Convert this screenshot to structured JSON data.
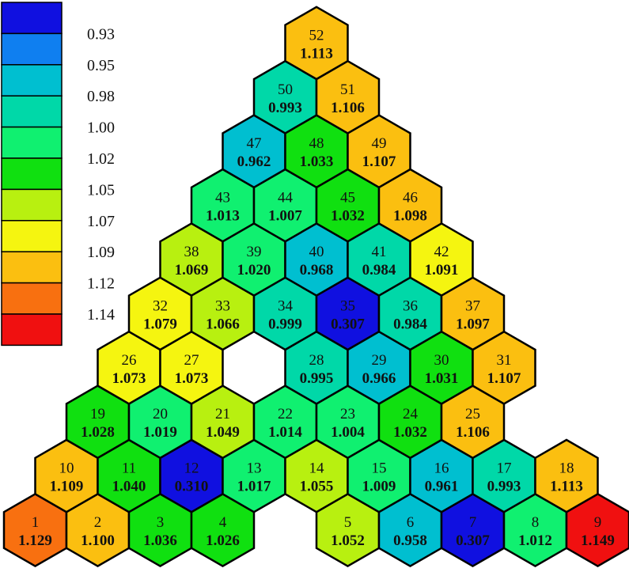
{
  "legend": {
    "labels": [
      "0.93",
      "0.95",
      "0.98",
      "1.00",
      "1.02",
      "1.05",
      "1.07",
      "1.09",
      "1.12",
      "1.14"
    ],
    "colors": [
      "#1010e0",
      "#0f7ff0",
      "#00bfd0",
      "#00d8a8",
      "#10f070",
      "#10e010",
      "#b8f010",
      "#f5f510",
      "#fbbf10",
      "#f87010",
      "#f01010"
    ]
  },
  "assemblies": [
    {
      "id": "1",
      "value": "1.129",
      "row": 0,
      "col": 0,
      "color": "#f87010"
    },
    {
      "id": "2",
      "value": "1.100",
      "row": 0,
      "col": 1,
      "color": "#fbbf10"
    },
    {
      "id": "3",
      "value": "1.036",
      "row": 0,
      "col": 2,
      "color": "#10e010"
    },
    {
      "id": "4",
      "value": "1.026",
      "row": 0,
      "col": 3,
      "color": "#10e010"
    },
    {
      "id": "5",
      "value": "1.052",
      "row": 0,
      "col": 5,
      "color": "#b8f010"
    },
    {
      "id": "6",
      "value": "0.958",
      "row": 0,
      "col": 6,
      "color": "#00bfd0"
    },
    {
      "id": "7",
      "value": "0.307",
      "row": 0,
      "col": 7,
      "color": "#1010e0"
    },
    {
      "id": "8",
      "value": "1.012",
      "row": 0,
      "col": 8,
      "color": "#10f070"
    },
    {
      "id": "9",
      "value": "1.149",
      "row": 0,
      "col": 9,
      "color": "#f01010"
    },
    {
      "id": "10",
      "value": "1.109",
      "row": 1,
      "col": 0,
      "color": "#fbbf10"
    },
    {
      "id": "11",
      "value": "1.040",
      "row": 1,
      "col": 1,
      "color": "#10e010"
    },
    {
      "id": "12",
      "value": "0.310",
      "row": 1,
      "col": 2,
      "color": "#1010e0"
    },
    {
      "id": "13",
      "value": "1.017",
      "row": 1,
      "col": 3,
      "color": "#10f070"
    },
    {
      "id": "14",
      "value": "1.055",
      "row": 1,
      "col": 4,
      "color": "#b8f010"
    },
    {
      "id": "15",
      "value": "1.009",
      "row": 1,
      "col": 5,
      "color": "#10f070"
    },
    {
      "id": "16",
      "value": "0.961",
      "row": 1,
      "col": 6,
      "color": "#00bfd0"
    },
    {
      "id": "17",
      "value": "0.993",
      "row": 1,
      "col": 7,
      "color": "#00d8a8"
    },
    {
      "id": "18",
      "value": "1.113",
      "row": 1,
      "col": 8,
      "color": "#fbbf10"
    },
    {
      "id": "19",
      "value": "1.028",
      "row": 2,
      "col": 0,
      "color": "#10e010"
    },
    {
      "id": "20",
      "value": "1.019",
      "row": 2,
      "col": 1,
      "color": "#10f070"
    },
    {
      "id": "21",
      "value": "1.049",
      "row": 2,
      "col": 2,
      "color": "#b8f010"
    },
    {
      "id": "22",
      "value": "1.014",
      "row": 2,
      "col": 3,
      "color": "#10f070"
    },
    {
      "id": "23",
      "value": "1.004",
      "row": 2,
      "col": 4,
      "color": "#10f070"
    },
    {
      "id": "24",
      "value": "1.032",
      "row": 2,
      "col": 5,
      "color": "#10e010"
    },
    {
      "id": "25",
      "value": "1.106",
      "row": 2,
      "col": 6,
      "color": "#fbbf10"
    },
    {
      "id": "26",
      "value": "1.073",
      "row": 3,
      "col": 0,
      "color": "#f5f510"
    },
    {
      "id": "27",
      "value": "1.073",
      "row": 3,
      "col": 1,
      "color": "#f5f510"
    },
    {
      "id": "28",
      "value": "0.995",
      "row": 3,
      "col": 3,
      "color": "#00d8a8"
    },
    {
      "id": "29",
      "value": "0.966",
      "row": 3,
      "col": 4,
      "color": "#00bfd0"
    },
    {
      "id": "30",
      "value": "1.031",
      "row": 3,
      "col": 5,
      "color": "#10e010"
    },
    {
      "id": "31",
      "value": "1.107",
      "row": 3,
      "col": 6,
      "color": "#fbbf10"
    },
    {
      "id": "32",
      "value": "1.079",
      "row": 4,
      "col": 0,
      "color": "#f5f510"
    },
    {
      "id": "33",
      "value": "1.066",
      "row": 4,
      "col": 1,
      "color": "#b8f010"
    },
    {
      "id": "34",
      "value": "0.999",
      "row": 4,
      "col": 2,
      "color": "#00d8a8"
    },
    {
      "id": "35",
      "value": "0.307",
      "row": 4,
      "col": 3,
      "color": "#1010e0"
    },
    {
      "id": "36",
      "value": "0.984",
      "row": 4,
      "col": 4,
      "color": "#00d8a8"
    },
    {
      "id": "37",
      "value": "1.097",
      "row": 4,
      "col": 5,
      "color": "#fbbf10"
    },
    {
      "id": "38",
      "value": "1.069",
      "row": 5,
      "col": 0,
      "color": "#b8f010"
    },
    {
      "id": "39",
      "value": "1.020",
      "row": 5,
      "col": 1,
      "color": "#10f070"
    },
    {
      "id": "40",
      "value": "0.968",
      "row": 5,
      "col": 2,
      "color": "#00bfd0"
    },
    {
      "id": "41",
      "value": "0.984",
      "row": 5,
      "col": 3,
      "color": "#00d8a8"
    },
    {
      "id": "42",
      "value": "1.091",
      "row": 5,
      "col": 4,
      "color": "#f5f510"
    },
    {
      "id": "43",
      "value": "1.013",
      "row": 6,
      "col": 0,
      "color": "#10f070"
    },
    {
      "id": "44",
      "value": "1.007",
      "row": 6,
      "col": 1,
      "color": "#10f070"
    },
    {
      "id": "45",
      "value": "1.032",
      "row": 6,
      "col": 2,
      "color": "#10e010"
    },
    {
      "id": "46",
      "value": "1.098",
      "row": 6,
      "col": 3,
      "color": "#fbbf10"
    },
    {
      "id": "47",
      "value": "0.962",
      "row": 7,
      "col": 0,
      "color": "#00bfd0"
    },
    {
      "id": "48",
      "value": "1.033",
      "row": 7,
      "col": 1,
      "color": "#10e010"
    },
    {
      "id": "49",
      "value": "1.107",
      "row": 7,
      "col": 2,
      "color": "#fbbf10"
    },
    {
      "id": "50",
      "value": "0.993",
      "row": 8,
      "col": 0,
      "color": "#00d8a8"
    },
    {
      "id": "51",
      "value": "1.106",
      "row": 8,
      "col": 1,
      "color": "#fbbf10"
    },
    {
      "id": "52",
      "value": "1.113",
      "row": 9,
      "col": 0,
      "color": "#fbbf10"
    }
  ]
}
